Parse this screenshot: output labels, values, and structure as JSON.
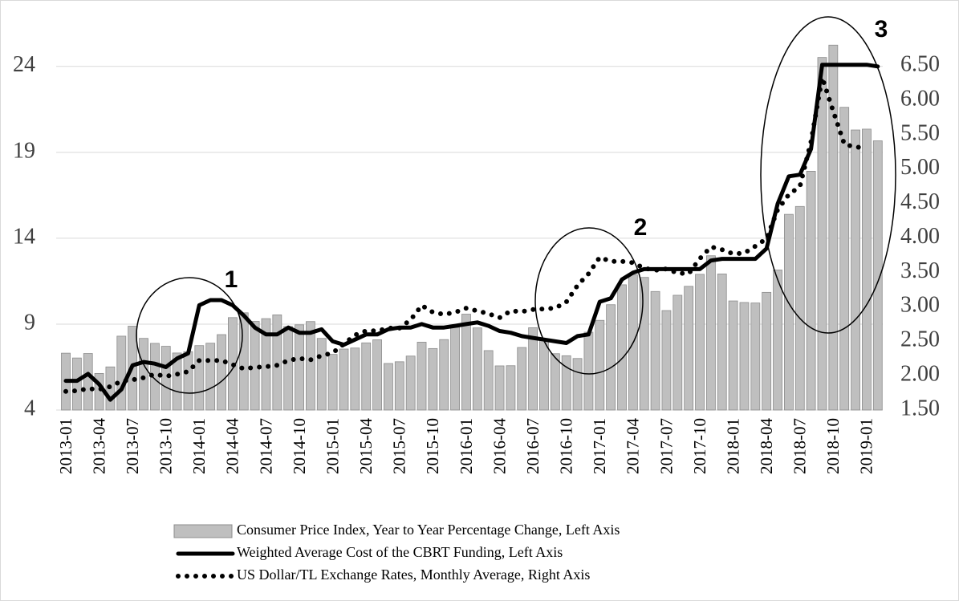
{
  "chart_data": {
    "type": "combo",
    "categories": [
      "2013-01",
      null,
      null,
      "2013-04",
      null,
      null,
      "2013-07",
      null,
      null,
      "2013-10",
      null,
      null,
      "2014-01",
      null,
      null,
      "2014-04",
      null,
      null,
      "2014-07",
      null,
      null,
      "2014-10",
      null,
      null,
      "2015-01",
      null,
      null,
      "2015-04",
      null,
      null,
      "2015-07",
      null,
      null,
      "2015-10",
      null,
      null,
      "2016-01",
      null,
      null,
      "2016-04",
      null,
      null,
      "2016-07",
      null,
      null,
      "2016-10",
      null,
      null,
      "2017-01",
      null,
      null,
      "2017-04",
      null,
      null,
      "2017-07",
      null,
      null,
      "2017-10",
      null,
      null,
      "2018-01",
      null,
      null,
      "2018-04",
      null,
      null,
      "2018-07",
      null,
      null,
      "2018-10",
      null,
      null,
      "2019-01",
      null
    ],
    "series": [
      {
        "name": "Consumer Price Index, Year to Year Percentage Change, Left Axis",
        "type": "bar",
        "color": "#bfbfbf",
        "values": [
          7.31,
          7.03,
          7.29,
          6.13,
          6.51,
          8.3,
          8.88,
          8.17,
          7.88,
          7.71,
          7.32,
          7.4,
          7.75,
          7.89,
          8.39,
          9.38,
          9.66,
          9.16,
          9.32,
          9.54,
          8.86,
          8.96,
          9.15,
          8.17,
          7.24,
          7.55,
          7.61,
          7.91,
          8.09,
          6.71,
          6.81,
          7.14,
          7.95,
          7.58,
          8.1,
          8.81,
          9.58,
          8.78,
          7.46,
          6.57,
          6.58,
          7.64,
          8.79,
          8.05,
          7.28,
          7.16,
          7.0,
          8.53,
          9.22,
          10.13,
          11.29,
          11.87,
          11.72,
          10.9,
          9.79,
          10.68,
          11.2,
          11.9,
          12.98,
          11.92,
          10.35,
          10.26,
          10.23,
          10.85,
          12.15,
          15.39,
          15.85,
          17.9,
          24.52,
          25.24,
          21.62,
          20.3,
          20.35,
          19.67
        ]
      },
      {
        "name": "Weighted Average Cost of the CBRT Funding, Left Axis",
        "type": "line",
        "color": "#000000",
        "values": [
          5.7,
          5.7,
          6.1,
          5.5,
          4.6,
          5.2,
          6.6,
          6.8,
          6.7,
          6.5,
          7.0,
          7.3,
          10.1,
          10.4,
          10.4,
          10.1,
          9.5,
          8.8,
          8.4,
          8.4,
          8.8,
          8.5,
          8.5,
          8.7,
          8.0,
          7.8,
          8.1,
          8.4,
          8.4,
          8.7,
          8.8,
          8.8,
          9.0,
          8.8,
          8.8,
          8.9,
          9.0,
          9.1,
          8.9,
          8.6,
          8.5,
          8.3,
          8.2,
          8.1,
          8.0,
          7.9,
          8.3,
          8.4,
          10.3,
          10.5,
          11.6,
          12.0,
          12.2,
          12.2,
          12.2,
          12.2,
          12.2,
          12.2,
          12.7,
          12.8,
          12.8,
          12.8,
          12.8,
          13.4,
          16.0,
          17.6,
          17.7,
          19.2,
          24.1,
          24.1,
          24.1,
          24.1,
          24.1,
          24.0
        ]
      },
      {
        "name": "US Dollar/TL Exchange Rates, Monthly Average, Right Axis",
        "type": "dotted",
        "color": "#000000",
        "axis": "y2",
        "values": [
          1.77,
          1.78,
          1.81,
          1.8,
          1.84,
          1.92,
          1.94,
          1.97,
          2.02,
          1.99,
          2.02,
          2.06,
          2.22,
          2.22,
          2.22,
          2.16,
          2.1,
          2.12,
          2.13,
          2.15,
          2.22,
          2.25,
          2.23,
          2.29,
          2.33,
          2.46,
          2.59,
          2.65,
          2.65,
          2.69,
          2.69,
          2.81,
          3.02,
          2.92,
          2.89,
          2.92,
          2.98,
          2.94,
          2.9,
          2.84,
          2.94,
          2.93,
          2.96,
          2.97,
          2.98,
          3.07,
          3.31,
          3.48,
          3.72,
          3.66,
          3.66,
          3.64,
          3.56,
          3.53,
          3.55,
          3.49,
          3.48,
          3.7,
          3.87,
          3.83,
          3.77,
          3.78,
          3.88,
          3.99,
          4.41,
          4.63,
          4.75,
          5.4,
          6.33,
          5.84,
          5.36,
          5.32,
          5.31,
          null
        ]
      }
    ],
    "ylim": [
      4,
      27.4
    ],
    "yticks": [
      4,
      9,
      14,
      19,
      24
    ],
    "y2lim": [
      1.5,
      7.34
    ],
    "y2ticks": [
      {
        "value": 1.5,
        "label": "1.50"
      },
      {
        "value": 2,
        "label": "2.00"
      },
      {
        "value": 2.5,
        "label": "2.50"
      },
      {
        "value": 3,
        "label": "3.00"
      },
      {
        "value": 3.5,
        "label": "3.50"
      },
      {
        "value": 4,
        "label": "4.00"
      },
      {
        "value": 4.5,
        "label": "4.50"
      },
      {
        "value": 5,
        "label": "5.00"
      },
      {
        "value": 5.5,
        "label": "5.50"
      },
      {
        "value": 6,
        "label": "6.00"
      },
      {
        "value": 6.5,
        "label": "6.50"
      }
    ],
    "grid": true,
    "legend": "bottom",
    "annotations": [
      {
        "text": "1"
      },
      {
        "text": "2"
      },
      {
        "text": "3"
      }
    ]
  }
}
